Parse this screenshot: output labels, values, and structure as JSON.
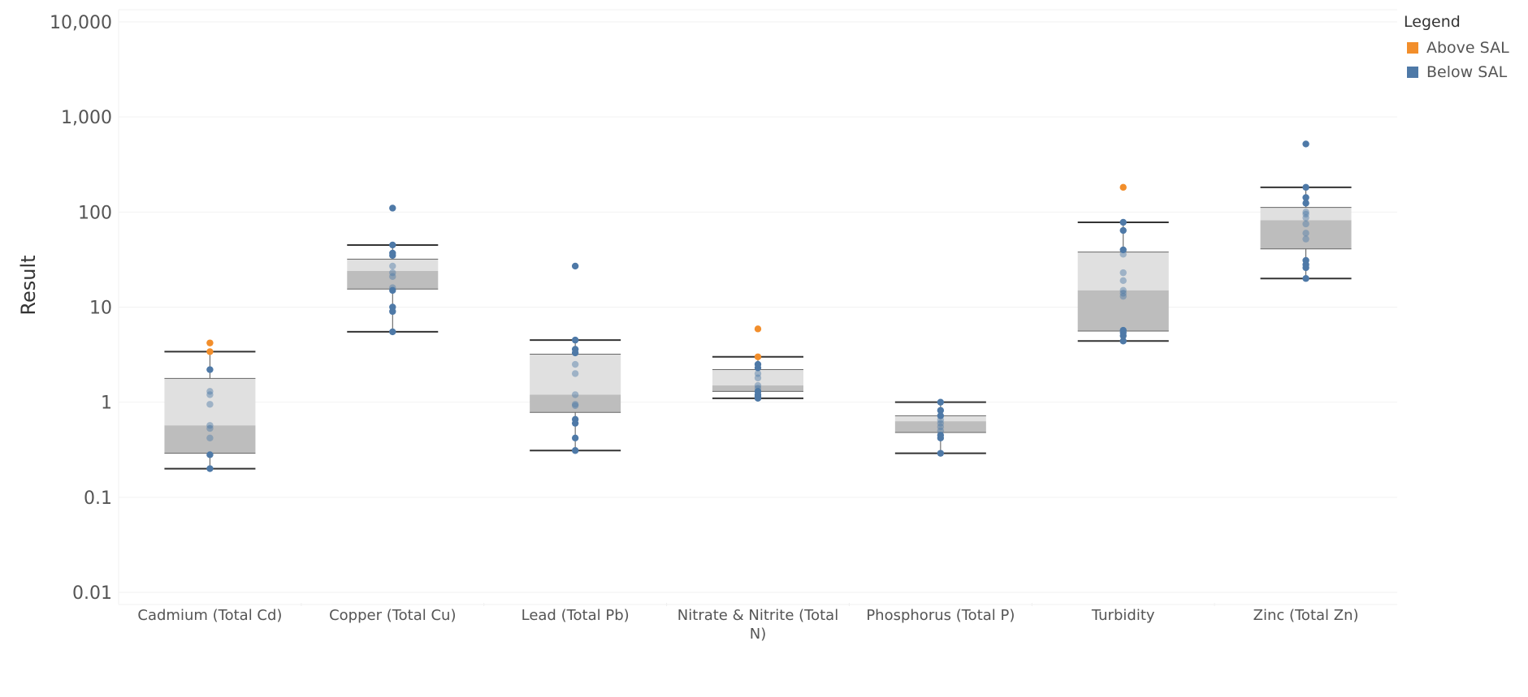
{
  "chart_data": {
    "type": "boxplot",
    "ylabel": "Result",
    "yscale": "log",
    "ylim": [
      0.01,
      10000
    ],
    "y_ticks": [
      "0.01",
      "0.1",
      "1",
      "10",
      "100",
      "1,000",
      "10,000"
    ],
    "y_tick_values": [
      0.01,
      0.1,
      1,
      10,
      100,
      1000,
      10000
    ],
    "categories": [
      [
        "Cadmium (Total Cd)"
      ],
      [
        "Copper (Total Cu)"
      ],
      [
        "Lead (Total Pb)"
      ],
      [
        "Nitrate & Nitrite (Total",
        "N)"
      ],
      [
        "Phosphorus (Total P)"
      ],
      [
        "Turbidity"
      ],
      [
        "Zinc (Total Zn)"
      ]
    ],
    "boxes": [
      {
        "whisker_low": 0.2,
        "q1": 0.29,
        "median": 0.57,
        "q3": 1.78,
        "whisker_high": 3.4
      },
      {
        "whisker_low": 5.5,
        "q1": 15.5,
        "median": 24,
        "q3": 32,
        "whisker_high": 45
      },
      {
        "whisker_low": 0.31,
        "q1": 0.78,
        "median": 1.2,
        "q3": 3.2,
        "whisker_high": 4.5
      },
      {
        "whisker_low": 1.1,
        "q1": 1.3,
        "median": 1.5,
        "q3": 2.2,
        "whisker_high": 3.0
      },
      {
        "whisker_low": 0.29,
        "q1": 0.48,
        "median": 0.63,
        "q3": 0.72,
        "whisker_high": 1.0
      },
      {
        "whisker_low": 4.4,
        "q1": 5.6,
        "median": 15,
        "q3": 38,
        "whisker_high": 78
      },
      {
        "whisker_low": 20,
        "q1": 41,
        "median": 82,
        "q3": 112,
        "whisker_high": 182
      }
    ],
    "series": [
      {
        "name": "Above SAL",
        "color": "#f28e2b",
        "points": [
          {
            "category": 0,
            "values": [
              4.2,
              3.4
            ]
          },
          {
            "category": 3,
            "values": [
              5.9,
              3.0
            ]
          },
          {
            "category": 5,
            "values": [
              182
            ]
          }
        ]
      },
      {
        "name": "Below SAL",
        "color": "#4e79a7",
        "points": [
          {
            "category": 0,
            "values": [
              0.2,
              0.28,
              0.42,
              0.53,
              0.57,
              0.95,
              1.2,
              1.3,
              2.2
            ]
          },
          {
            "category": 1,
            "values": [
              5.5,
              9,
              10,
              15,
              16,
              21,
              23,
              27,
              35,
              37,
              45,
              110
            ]
          },
          {
            "category": 2,
            "values": [
              0.31,
              0.42,
              0.6,
              0.66,
              0.92,
              0.95,
              1.2,
              2.0,
              2.5,
              3.3,
              3.6,
              4.5,
              27
            ]
          },
          {
            "category": 3,
            "values": [
              1.1,
              1.15,
              1.2,
              1.3,
              1.4,
              1.5,
              1.8,
              2.0,
              2.3,
              2.5
            ]
          },
          {
            "category": 4,
            "values": [
              0.29,
              0.42,
              0.45,
              0.5,
              0.55,
              0.6,
              0.65,
              0.72,
              0.82,
              1.0
            ]
          },
          {
            "category": 5,
            "values": [
              4.4,
              5.0,
              5.4,
              5.7,
              13,
              14,
              15,
              19,
              23,
              36,
              40,
              64,
              78
            ]
          },
          {
            "category": 6,
            "values": [
              20,
              26,
              28,
              31,
              52,
              60,
              75,
              87,
              95,
              100,
              124,
              142,
              182,
              520
            ]
          }
        ]
      }
    ],
    "legend": {
      "title": "Legend",
      "position": "top-right",
      "items": [
        {
          "label": "Above SAL",
          "color": "#f28e2b"
        },
        {
          "label": "Below SAL",
          "color": "#4e79a7"
        }
      ]
    },
    "box_colors": {
      "lower": "#bdbdbd",
      "upper": "#e0e0e0",
      "whisker": "#333333"
    },
    "grid": true
  }
}
